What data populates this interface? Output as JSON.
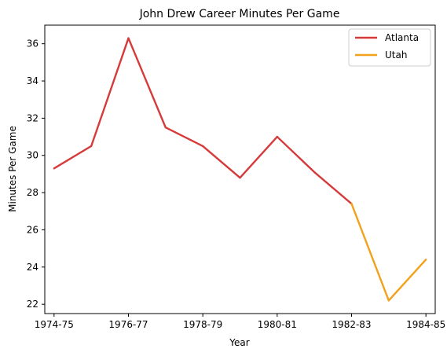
{
  "chart_data": {
    "type": "line",
    "title": "John Drew  Career Minutes Per Game",
    "xlabel": "Year",
    "ylabel": "Minutes Per Game",
    "ylim": [
      21.5,
      37.0
    ],
    "yticks": [
      22,
      24,
      26,
      28,
      30,
      32,
      34,
      36
    ],
    "xlim": [
      -0.25,
      10.25
    ],
    "xticks": [
      {
        "pos": 0,
        "label": "1974-75"
      },
      {
        "pos": 2,
        "label": "1976-77"
      },
      {
        "pos": 4,
        "label": "1978-79"
      },
      {
        "pos": 6,
        "label": "1980-81"
      },
      {
        "pos": 8,
        "label": "1982-83"
      },
      {
        "pos": 10,
        "label": "1984-85"
      }
    ],
    "grid": false,
    "legend_position": "top-right",
    "series": [
      {
        "name": "Atlanta",
        "color": "#d63a3a",
        "x": [
          0,
          1,
          2,
          3,
          4,
          5,
          6,
          7,
          8
        ],
        "values": [
          29.3,
          30.5,
          36.3,
          31.5,
          30.5,
          28.8,
          31.0,
          29.1,
          27.4
        ]
      },
      {
        "name": "Utah",
        "color": "#f2a11c",
        "x": [
          8,
          9,
          10
        ],
        "values": [
          27.4,
          22.2,
          24.4
        ]
      }
    ]
  }
}
